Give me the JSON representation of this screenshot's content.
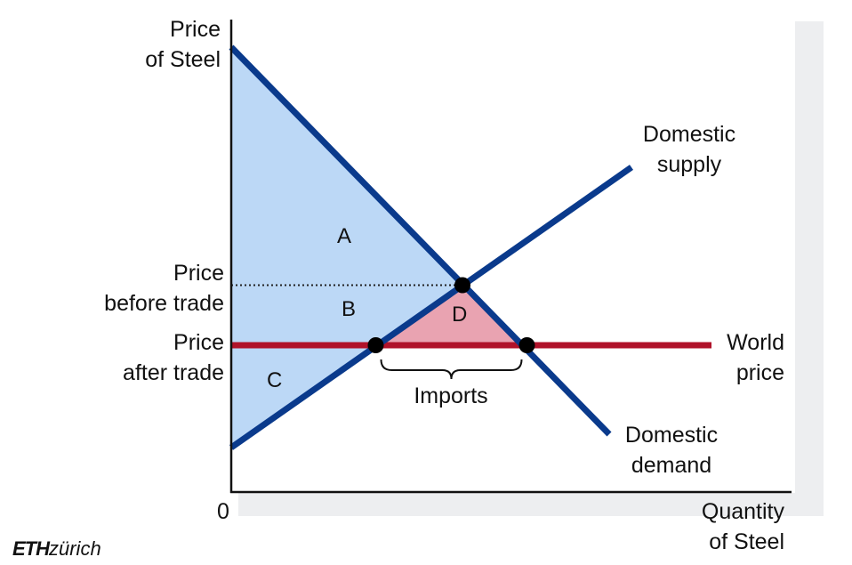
{
  "chart_data": {
    "type": "line",
    "title": "",
    "ylabel": [
      "Price",
      "of Steel"
    ],
    "xlabel": [
      "Quantity",
      "of Steel"
    ],
    "origin_label": "0",
    "series": [
      {
        "name": "Domestic supply",
        "label_lines": [
          "Domestic",
          "supply"
        ],
        "color": "#0a3a8c",
        "points": [
          [
            0,
            10
          ],
          [
            90,
            73
          ]
        ]
      },
      {
        "name": "Domestic demand",
        "label_lines": [
          "Domestic",
          "demand"
        ],
        "color": "#0a3a8c",
        "points": [
          [
            0,
            100
          ],
          [
            85,
            13
          ]
        ]
      },
      {
        "name": "World price",
        "label_lines": [
          "World",
          "price"
        ],
        "color": "#b0122a",
        "points": [
          [
            0,
            33
          ],
          [
            108,
            33
          ]
        ]
      }
    ],
    "ylim": [
      0,
      104
    ],
    "xlim": [
      0,
      126
    ],
    "price_levels": [
      {
        "label_lines": [
          "Price",
          "before trade"
        ],
        "value": 46.5
      },
      {
        "label_lines": [
          "Price",
          "after trade"
        ],
        "value": 33
      }
    ],
    "equilibrium_points": [
      {
        "x": 52,
        "y": 46.5
      },
      {
        "x": 32.5,
        "y": 33
      },
      {
        "x": 66.5,
        "y": 33
      }
    ],
    "areas": [
      {
        "label": "A",
        "color": "#bcd8f6"
      },
      {
        "label": "B",
        "color": "#bcd8f6"
      },
      {
        "label": "C",
        "color": "#bcd8f6"
      },
      {
        "label": "D",
        "color": "#e9a3b1"
      }
    ],
    "imports_label": "Imports",
    "grid": false
  },
  "logo": {
    "bold": "ETH",
    "rest": "zürich"
  }
}
